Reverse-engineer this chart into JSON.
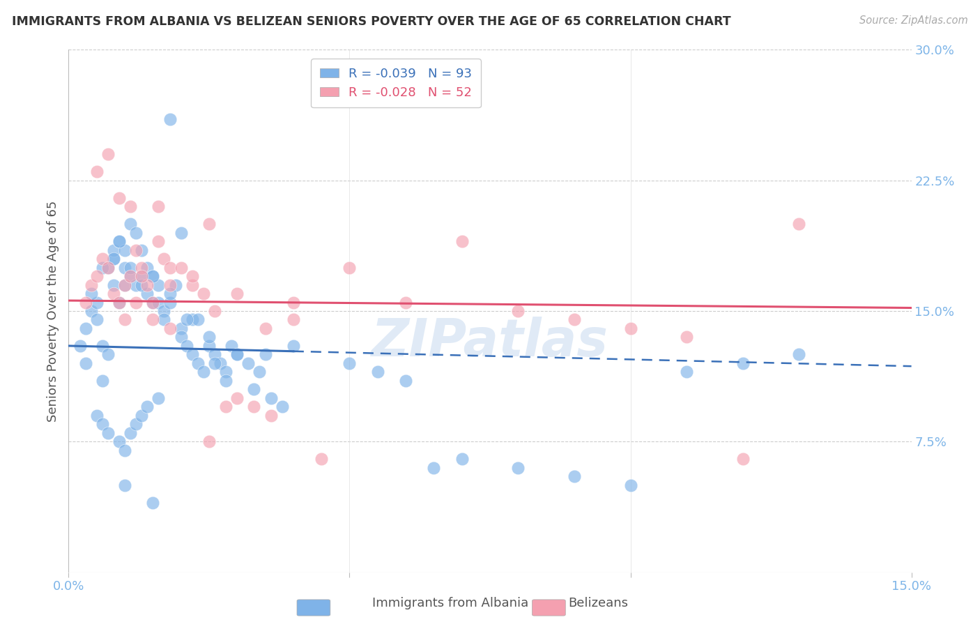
{
  "title": "IMMIGRANTS FROM ALBANIA VS BELIZEAN SENIORS POVERTY OVER THE AGE OF 65 CORRELATION CHART",
  "source": "Source: ZipAtlas.com",
  "ylabel": "Seniors Poverty Over the Age of 65",
  "xlim": [
    0.0,
    0.15
  ],
  "ylim": [
    0.0,
    0.3
  ],
  "albania_R": -0.039,
  "albania_N": 93,
  "belize_R": -0.028,
  "belize_N": 52,
  "albania_color": "#7fb3e8",
  "belize_color": "#f4a0b0",
  "albania_line_color": "#3a70b8",
  "belize_line_color": "#e05070",
  "background_color": "#ffffff",
  "grid_color": "#cccccc",
  "axis_color": "#7eb5e8",
  "title_color": "#333333",
  "watermark": "ZIPatlas",
  "legend_label_albania": "Immigrants from Albania",
  "legend_label_belize": "Belizeans",
  "albania_intercept": 0.13,
  "albania_slope": -0.078,
  "belize_intercept": 0.156,
  "belize_slope": -0.028,
  "albania_scatter_x": [
    0.002,
    0.003,
    0.004,
    0.005,
    0.005,
    0.006,
    0.006,
    0.007,
    0.007,
    0.008,
    0.008,
    0.008,
    0.009,
    0.009,
    0.01,
    0.01,
    0.01,
    0.011,
    0.011,
    0.012,
    0.012,
    0.013,
    0.013,
    0.014,
    0.014,
    0.015,
    0.015,
    0.016,
    0.016,
    0.017,
    0.017,
    0.018,
    0.019,
    0.02,
    0.02,
    0.021,
    0.022,
    0.022,
    0.023,
    0.024,
    0.025,
    0.026,
    0.027,
    0.028,
    0.029,
    0.03,
    0.032,
    0.034,
    0.036,
    0.038,
    0.005,
    0.006,
    0.007,
    0.009,
    0.01,
    0.011,
    0.012,
    0.013,
    0.014,
    0.016,
    0.018,
    0.02,
    0.023,
    0.026,
    0.03,
    0.035,
    0.04,
    0.05,
    0.055,
    0.06,
    0.065,
    0.07,
    0.08,
    0.09,
    0.1,
    0.11,
    0.12,
    0.13,
    0.01,
    0.015,
    0.003,
    0.004,
    0.006,
    0.008,
    0.009,
    0.011,
    0.013,
    0.015,
    0.018,
    0.021,
    0.025,
    0.028,
    0.033
  ],
  "albania_scatter_y": [
    0.13,
    0.12,
    0.15,
    0.155,
    0.145,
    0.13,
    0.11,
    0.125,
    0.175,
    0.18,
    0.165,
    0.185,
    0.19,
    0.155,
    0.175,
    0.185,
    0.165,
    0.17,
    0.2,
    0.195,
    0.165,
    0.185,
    0.17,
    0.175,
    0.16,
    0.155,
    0.17,
    0.165,
    0.155,
    0.15,
    0.145,
    0.155,
    0.165,
    0.14,
    0.135,
    0.13,
    0.145,
    0.125,
    0.12,
    0.115,
    0.13,
    0.125,
    0.12,
    0.115,
    0.13,
    0.125,
    0.12,
    0.115,
    0.1,
    0.095,
    0.09,
    0.085,
    0.08,
    0.075,
    0.07,
    0.08,
    0.085,
    0.09,
    0.095,
    0.1,
    0.26,
    0.195,
    0.145,
    0.12,
    0.125,
    0.125,
    0.13,
    0.12,
    0.115,
    0.11,
    0.06,
    0.065,
    0.06,
    0.055,
    0.05,
    0.115,
    0.12,
    0.125,
    0.05,
    0.04,
    0.14,
    0.16,
    0.175,
    0.18,
    0.19,
    0.175,
    0.165,
    0.17,
    0.16,
    0.145,
    0.135,
    0.11,
    0.105
  ],
  "belize_scatter_x": [
    0.003,
    0.004,
    0.005,
    0.006,
    0.007,
    0.008,
    0.009,
    0.01,
    0.011,
    0.012,
    0.013,
    0.014,
    0.015,
    0.016,
    0.017,
    0.018,
    0.02,
    0.022,
    0.024,
    0.026,
    0.005,
    0.007,
    0.009,
    0.011,
    0.013,
    0.016,
    0.018,
    0.025,
    0.03,
    0.035,
    0.04,
    0.05,
    0.06,
    0.07,
    0.08,
    0.09,
    0.1,
    0.11,
    0.13,
    0.01,
    0.012,
    0.015,
    0.018,
    0.022,
    0.025,
    0.028,
    0.03,
    0.033,
    0.036,
    0.04,
    0.045,
    0.12
  ],
  "belize_scatter_y": [
    0.155,
    0.165,
    0.17,
    0.18,
    0.175,
    0.16,
    0.155,
    0.165,
    0.17,
    0.185,
    0.175,
    0.165,
    0.155,
    0.19,
    0.18,
    0.175,
    0.175,
    0.165,
    0.16,
    0.15,
    0.23,
    0.24,
    0.215,
    0.21,
    0.17,
    0.21,
    0.165,
    0.2,
    0.16,
    0.14,
    0.145,
    0.175,
    0.155,
    0.19,
    0.15,
    0.145,
    0.14,
    0.135,
    0.2,
    0.145,
    0.155,
    0.145,
    0.14,
    0.17,
    0.075,
    0.095,
    0.1,
    0.095,
    0.09,
    0.155,
    0.065,
    0.065
  ]
}
